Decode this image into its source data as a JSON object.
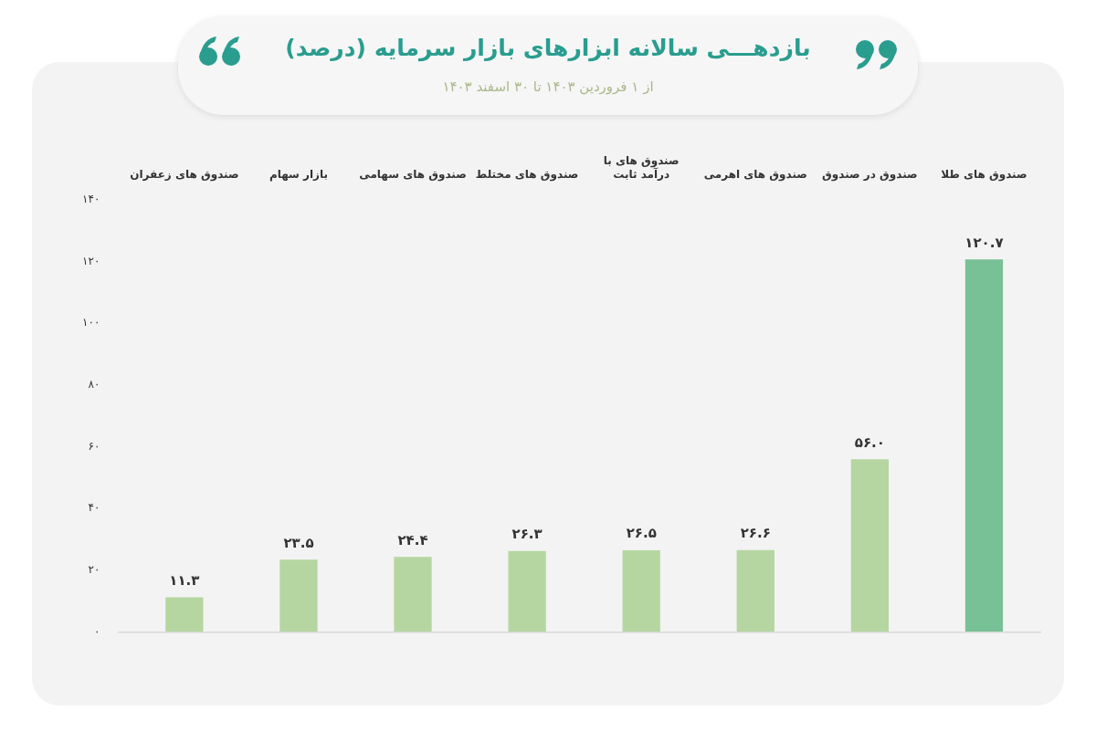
{
  "chart_data": {
    "type": "bar",
    "title": "بازدهـــی سالانه ابزارهای بازار سرمایه (درصد)",
    "subtitle": "از ۱ فروردین ۱۴۰۳ تا ۳۰ اسفند ۱۴۰۳",
    "categories": [
      "صندوق های زعفران",
      "بازار سهام",
      "صندوق های سهامی",
      "صندوق های مختلط",
      "صندوق های با درآمد ثابت",
      "صندوق های اهرمی",
      "صندوق در صندوق",
      "صندوق های طلا"
    ],
    "values": [
      11.3,
      23.5,
      24.4,
      26.3,
      26.5,
      26.6,
      56.0,
      120.7
    ],
    "value_labels": [
      "۱۱.۳",
      "۲۳.۵",
      "۲۴.۴",
      "۲۶.۳",
      "۲۶.۵",
      "۲۶.۶",
      "۵۶.۰",
      "۱۲۰.۷"
    ],
    "colors": [
      "#b5d6a0",
      "#b5d6a0",
      "#b5d6a0",
      "#b5d6a0",
      "#b5d6a0",
      "#b5d6a0",
      "#b5d6a0",
      "#78c096"
    ],
    "ylim": [
      0,
      140
    ],
    "yticks": [
      {
        "value": 0,
        "label": "۰"
      },
      {
        "value": 20,
        "label": "۲۰"
      },
      {
        "value": 40,
        "label": "۴۰"
      },
      {
        "value": 60,
        "label": "۶۰"
      },
      {
        "value": 80,
        "label": "۸۰"
      },
      {
        "value": 100,
        "label": "۱۰۰"
      },
      {
        "value": 120,
        "label": "۱۲۰"
      },
      {
        "value": 140,
        "label": "۱۴۰"
      }
    ],
    "grid": false,
    "legend": false
  }
}
